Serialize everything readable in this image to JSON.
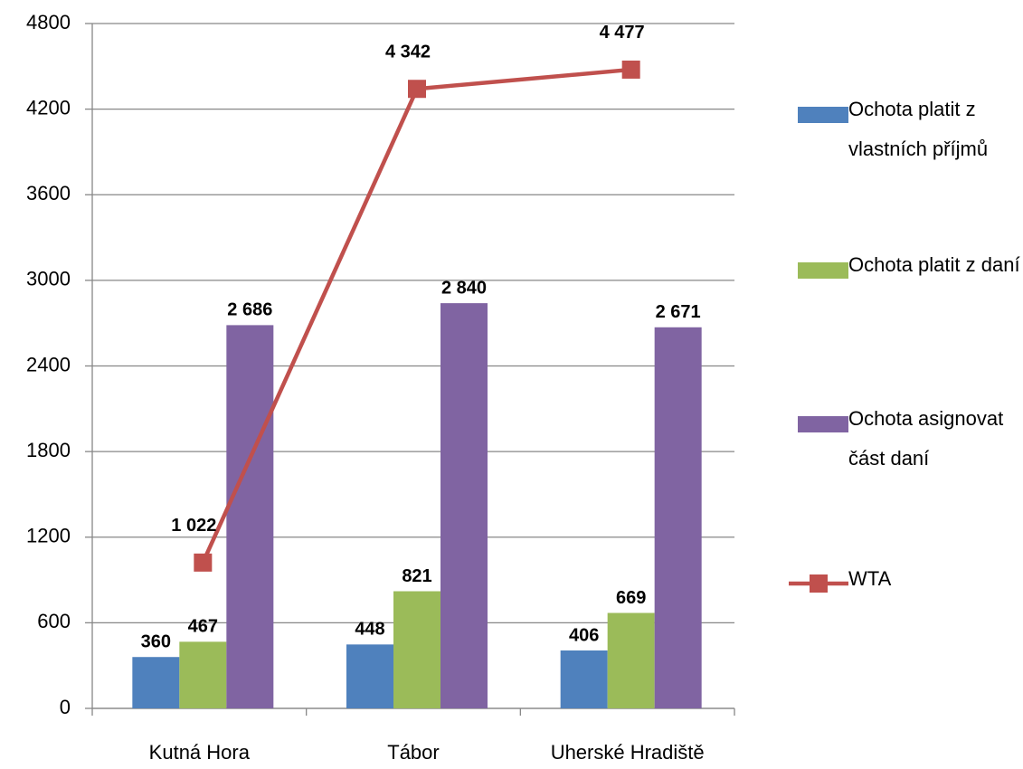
{
  "chart_data": {
    "type": "bar",
    "categories": [
      "Kutná Hora",
      "Tábor",
      "Uherské Hradiště"
    ],
    "series": [
      {
        "name": "Ochota platit z vlastních příjmů",
        "color": "#4f81bd",
        "values": [
          360,
          448,
          406
        ],
        "value_labels": [
          "360",
          "448",
          "406"
        ]
      },
      {
        "name": "Ochota platit z daní",
        "color": "#9bbb59",
        "values": [
          467,
          821,
          669
        ],
        "value_labels": [
          "467",
          "821",
          "669"
        ]
      },
      {
        "name": "Ochota asignovat část daní",
        "color": "#8064a2",
        "values": [
          2686,
          2840,
          2671
        ],
        "value_labels": [
          "2 686",
          "2 840",
          "2 671"
        ]
      },
      {
        "name": "WTA",
        "type": "line",
        "color": "#c0504d",
        "values": [
          1022,
          4342,
          4477
        ],
        "value_labels": [
          "1 022",
          "4 342",
          "4 477"
        ]
      }
    ],
    "ylim": [
      0,
      4800
    ],
    "yticks": [
      0,
      600,
      1200,
      1800,
      2400,
      3000,
      3600,
      4200,
      4800
    ],
    "grid": true,
    "legend": "right"
  }
}
